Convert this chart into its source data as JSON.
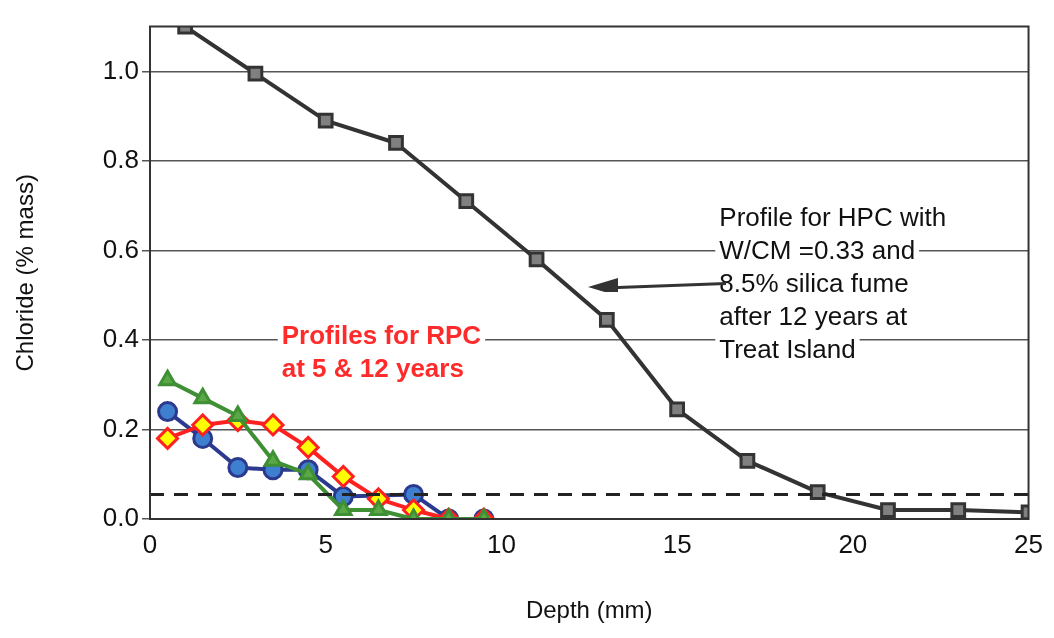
{
  "chart_data": {
    "type": "line",
    "xlabel": "Depth (mm)",
    "ylabel": "Chloride (% mass)",
    "xlim": [
      0,
      25
    ],
    "xticks": [
      0,
      5,
      10,
      15,
      20,
      25
    ],
    "ylim": [
      0,
      1.1
    ],
    "yticks": [
      {
        "value": 0,
        "label": "0.0"
      },
      0.2,
      0.4,
      0.6,
      0.8,
      {
        "value": 1,
        "label": "1.0"
      }
    ],
    "grid": "y",
    "legend": false,
    "line_style": "solid",
    "series": [
      {
        "color": "#333333",
        "marker": "square",
        "x": [
          1,
          3,
          5,
          7,
          9,
          11,
          13,
          15,
          17,
          19,
          21,
          23,
          25
        ],
        "values": [
          1.1,
          0.995,
          0.89,
          0.84,
          0.71,
          0.58,
          0.445,
          0.245,
          0.13,
          0.06,
          0.02,
          0.02,
          0.015
        ]
      },
      {
        "color": "#2b3a8f",
        "marker": "circle",
        "x": [
          0.5,
          1.5,
          2.5,
          3.5,
          4.5,
          5.5,
          6.5,
          7.5,
          8.5,
          9.5
        ],
        "values": [
          0.24,
          0.18,
          0.115,
          0.11,
          0.11,
          0.05,
          null,
          0.055,
          0.0,
          0.0
        ]
      },
      {
        "color": "#ff2020",
        "marker": "diamond",
        "x": [
          0.5,
          1.5,
          2.5,
          3.5,
          4.5,
          5.5,
          6.5,
          7.5,
          8.5,
          9.5
        ],
        "values": [
          0.18,
          0.21,
          0.22,
          0.21,
          0.16,
          0.095,
          0.045,
          0.02,
          0.0,
          0.0
        ]
      },
      {
        "color": "#3f8f35",
        "marker": "triangle",
        "x": [
          0.5,
          1.5,
          2.5,
          3.5,
          4.5,
          5.5,
          6.5,
          7.5,
          8.5,
          9.5
        ],
        "values": [
          0.31,
          0.27,
          0.23,
          0.13,
          0.1,
          0.02,
          0.02,
          0.0,
          0.0,
          0.0
        ]
      }
    ],
    "ref_lines": [
      {
        "axis": "y",
        "value": 0.055,
        "color": "#222222",
        "line_style": "dashed"
      }
    ],
    "annotations": [
      "Profile for HPC with\nW/CM =0.33 and\n8.5% silica fume\nafter 12 years at\nTreat Island",
      "Profiles for RPC\nat 5 & 12 years"
    ]
  }
}
